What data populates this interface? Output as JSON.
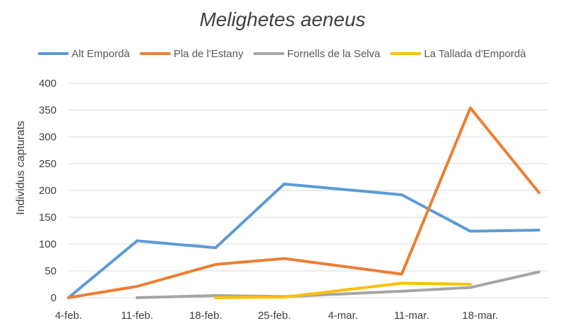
{
  "chart_data": {
    "type": "line",
    "title": "Melighetes aeneus",
    "xlabel": "",
    "ylabel": "Individus capturats",
    "ylim": [
      0,
      400
    ],
    "yticks": [
      0,
      50,
      100,
      150,
      200,
      250,
      300,
      350,
      400
    ],
    "xlim": [
      "2021-02-04",
      "2021-03-25"
    ],
    "xticks": [
      {
        "date": "2021-02-04",
        "label": "4-feb."
      },
      {
        "date": "2021-02-11",
        "label": "11-feb."
      },
      {
        "date": "2021-02-18",
        "label": "18-feb."
      },
      {
        "date": "2021-02-25",
        "label": "25-feb."
      },
      {
        "date": "2021-03-04",
        "label": "4-mar."
      },
      {
        "date": "2021-03-11",
        "label": "11-mar."
      },
      {
        "date": "2021-03-18",
        "label": "18-mar."
      }
    ],
    "grid": true,
    "legend_position": "top",
    "series": [
      {
        "name": "Alt Empordà",
        "color": "#5b9bd5",
        "points": [
          {
            "x": "2021-02-04",
            "y": 0
          },
          {
            "x": "2021-02-11",
            "y": 106
          },
          {
            "x": "2021-02-19",
            "y": 93
          },
          {
            "x": "2021-02-26",
            "y": 212
          },
          {
            "x": "2021-03-10",
            "y": 192
          },
          {
            "x": "2021-03-17",
            "y": 124
          },
          {
            "x": "2021-03-24",
            "y": 126
          }
        ]
      },
      {
        "name": "Pla de l'Estany",
        "color": "#ed7d31",
        "points": [
          {
            "x": "2021-02-04",
            "y": 0
          },
          {
            "x": "2021-02-11",
            "y": 21
          },
          {
            "x": "2021-02-19",
            "y": 62
          },
          {
            "x": "2021-02-26",
            "y": 73
          },
          {
            "x": "2021-03-10",
            "y": 44
          },
          {
            "x": "2021-03-17",
            "y": 354
          },
          {
            "x": "2021-03-24",
            "y": 196
          }
        ]
      },
      {
        "name": "Fornells de la Selva",
        "color": "#a5a5a5",
        "points": [
          {
            "x": "2021-02-11",
            "y": 0
          },
          {
            "x": "2021-02-19",
            "y": 4
          },
          {
            "x": "2021-02-26",
            "y": 2
          },
          {
            "x": "2021-03-10",
            "y": 12
          },
          {
            "x": "2021-03-17",
            "y": 19
          },
          {
            "x": "2021-03-24",
            "y": 48
          }
        ]
      },
      {
        "name": "La Tallada d'Empordà",
        "color": "#ffc000",
        "points": [
          {
            "x": "2021-02-19",
            "y": 0
          },
          {
            "x": "2021-02-26",
            "y": 1
          },
          {
            "x": "2021-03-10",
            "y": 27
          },
          {
            "x": "2021-03-17",
            "y": 25
          }
        ]
      }
    ]
  }
}
